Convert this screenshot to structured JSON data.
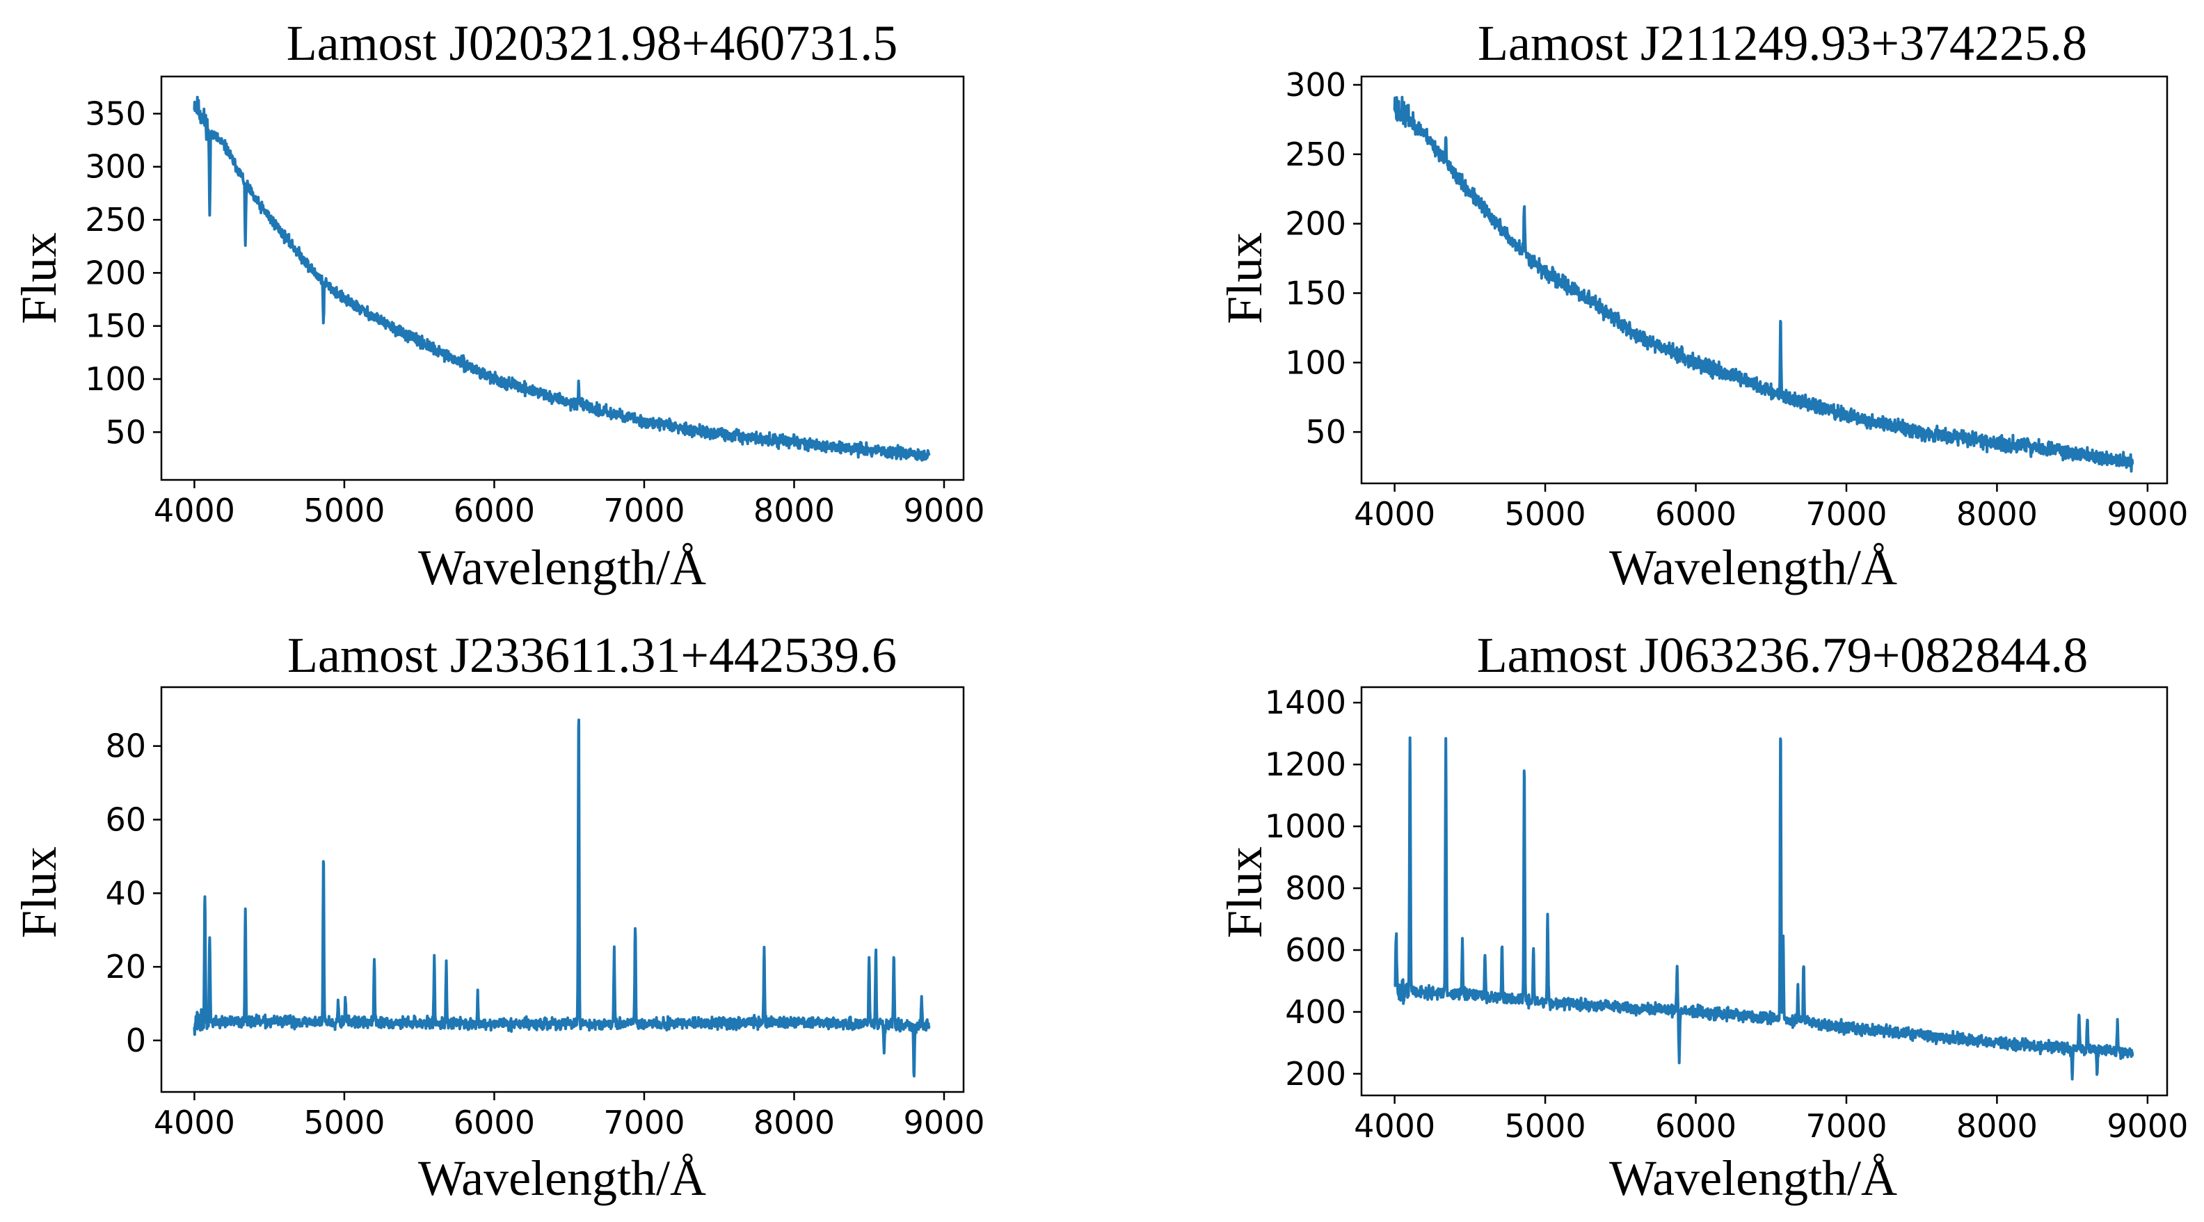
{
  "colors": {
    "line": "#1f77b4",
    "axis": "#000000",
    "background": "#ffffff"
  },
  "chart_data": [
    {
      "type": "line",
      "title": "Lamost J020321.98+460731.5",
      "xlabel": "Wavelength/Å",
      "ylabel": "Flux",
      "xlim": [
        3780,
        9130
      ],
      "ylim": [
        5,
        385
      ],
      "xticks": [
        "4000",
        "5000",
        "6000",
        "7000",
        "8000",
        "9000"
      ],
      "yticks": [
        "50",
        "100",
        "150",
        "200",
        "250",
        "300",
        "350"
      ],
      "continuum": [
        [
          4000,
          360
        ],
        [
          4100,
          335
        ],
        [
          4200,
          320
        ],
        [
          4400,
          270
        ],
        [
          4600,
          235
        ],
        [
          4800,
          200
        ],
        [
          5000,
          175
        ],
        [
          5300,
          150
        ],
        [
          5600,
          128
        ],
        [
          6000,
          100
        ],
        [
          6500,
          78
        ],
        [
          7000,
          60
        ],
        [
          7500,
          48
        ],
        [
          8000,
          40
        ],
        [
          8500,
          33
        ],
        [
          8900,
          28
        ]
      ],
      "features": [
        [
          4102,
          -80
        ],
        [
          4340,
          -60
        ],
        [
          4861,
          -40
        ],
        [
          6563,
          18
        ],
        [
          8000,
          5
        ]
      ],
      "noise": 3.5,
      "seed": 11
    },
    {
      "type": "line",
      "title": "Lamost J211249.93+374225.8",
      "xlabel": "Wavelength/Å",
      "ylabel": "Flux",
      "xlim": [
        3780,
        9130
      ],
      "ylim": [
        13,
        306
      ],
      "xticks": [
        "4000",
        "5000",
        "6000",
        "7000",
        "8000",
        "9000"
      ],
      "yticks": [
        "50",
        "100",
        "150",
        "200",
        "250",
        "300"
      ],
      "continuum": [
        [
          4000,
          285
        ],
        [
          4200,
          265
        ],
        [
          4400,
          235
        ],
        [
          4600,
          210
        ],
        [
          4800,
          185
        ],
        [
          5000,
          165
        ],
        [
          5300,
          145
        ],
        [
          5600,
          120
        ],
        [
          6000,
          100
        ],
        [
          6300,
          88
        ],
        [
          6600,
          75
        ],
        [
          7000,
          62
        ],
        [
          7500,
          50
        ],
        [
          8000,
          42
        ],
        [
          8500,
          35
        ],
        [
          8900,
          28
        ]
      ],
      "features": [
        [
          4340,
          20
        ],
        [
          4861,
          35
        ],
        [
          6563,
          55
        ],
        [
          8200,
          6
        ]
      ],
      "noise": 3.5,
      "seed": 23
    },
    {
      "type": "line",
      "title": "Lamost J233611.31+442539.6",
      "xlabel": "Wavelength/Å",
      "ylabel": "Flux",
      "xlim": [
        3780,
        9130
      ],
      "ylim": [
        -14,
        96
      ],
      "xticks": [
        "4000",
        "5000",
        "6000",
        "7000",
        "8000",
        "9000"
      ],
      "yticks": [
        "0",
        "20",
        "40",
        "60",
        "80"
      ],
      "continuum": [
        [
          4000,
          5
        ],
        [
          5000,
          5
        ],
        [
          6000,
          4.5
        ],
        [
          7000,
          4.5
        ],
        [
          8000,
          5
        ],
        [
          8900,
          4
        ]
      ],
      "features": [
        [
          4070,
          35
        ],
        [
          4102,
          24
        ],
        [
          4340,
          32
        ],
        [
          4861,
          46
        ],
        [
          4959,
          6
        ],
        [
          5007,
          7
        ],
        [
          5200,
          25
        ],
        [
          5200,
          -8
        ],
        [
          5600,
          17
        ],
        [
          5680,
          16
        ],
        [
          5890,
          8
        ],
        [
          6563,
          86
        ],
        [
          6800,
          19
        ],
        [
          6940,
          27
        ],
        [
          7800,
          20
        ],
        [
          8500,
          18
        ],
        [
          8545,
          20
        ],
        [
          8600,
          -8
        ],
        [
          8665,
          19
        ],
        [
          8800,
          -14
        ],
        [
          8850,
          7
        ]
      ],
      "noise": 1.0,
      "seed": 37
    },
    {
      "type": "line",
      "title": "Lamost J063236.79+082844.8",
      "xlabel": "Wavelength/Å",
      "ylabel": "Flux",
      "xlim": [
        3780,
        9130
      ],
      "ylim": [
        130,
        1450
      ],
      "xticks": [
        "4000",
        "5000",
        "6000",
        "7000",
        "8000",
        "9000"
      ],
      "yticks": [
        "200",
        "400",
        "600",
        "800",
        "1000",
        "1200",
        "1400"
      ],
      "continuum": [
        [
          4000,
          470
        ],
        [
          4500,
          455
        ],
        [
          5000,
          430
        ],
        [
          5500,
          415
        ],
        [
          6000,
          400
        ],
        [
          6500,
          380
        ],
        [
          7000,
          350
        ],
        [
          7500,
          325
        ],
        [
          8000,
          300
        ],
        [
          8500,
          280
        ],
        [
          8900,
          270
        ]
      ],
      "features": [
        [
          4010,
          190
        ],
        [
          4102,
          830
        ],
        [
          4340,
          830
        ],
        [
          4450,
          160
        ],
        [
          4600,
          140
        ],
        [
          4713,
          170
        ],
        [
          4861,
          780
        ],
        [
          4922,
          170
        ],
        [
          5016,
          280
        ],
        [
          5876,
          150
        ],
        [
          5890,
          -150
        ],
        [
          6563,
          950
        ],
        [
          6580,
          260
        ],
        [
          6678,
          110
        ],
        [
          6716,
          190
        ],
        [
          8500,
          -90
        ],
        [
          8545,
          120
        ],
        [
          8600,
          110
        ],
        [
          8665,
          -80
        ],
        [
          8800,
          90
        ]
      ],
      "noise": 12,
      "seed": 51
    }
  ]
}
